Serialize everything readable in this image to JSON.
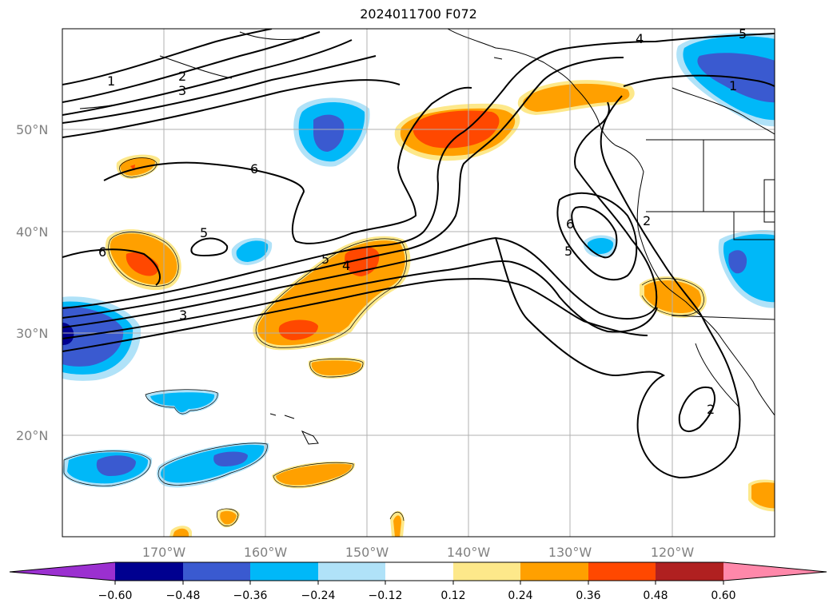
{
  "title": "2024011700 F072",
  "lat_labels": [
    {
      "text": "50°N",
      "lat": 50
    },
    {
      "text": "40°N",
      "lat": 40
    },
    {
      "text": "30°N",
      "lat": 30
    },
    {
      "text": "20°N",
      "lat": 20
    }
  ],
  "lon_labels": [
    {
      "text": "170°W",
      "lon": -170
    },
    {
      "text": "160°W",
      "lon": -160
    },
    {
      "text": "150°W",
      "lon": -150
    },
    {
      "text": "140°W",
      "lon": -140
    },
    {
      "text": "130°W",
      "lon": -130
    },
    {
      "text": "120°W",
      "lon": -120
    }
  ],
  "contour_labels": [
    "1",
    "2",
    "3",
    "6",
    "5",
    "6",
    "5",
    "4",
    "3",
    "6",
    "5",
    "2",
    "2",
    "4",
    "5",
    "1"
  ],
  "colorbar": {
    "ticks": [
      "−0.60",
      "−0.48",
      "−0.36",
      "−0.24",
      "−0.12",
      "0.12",
      "0.24",
      "0.36",
      "0.48",
      "0.60"
    ],
    "colors": {
      "lt_neg_0_60": "#9b30d0",
      "neg_0_60": "#000090",
      "neg_0_48": "#3a5ad0",
      "neg_0_36": "#00b8f8",
      "neg_0_24": "#b0e2f8",
      "neg_0_12": "#ffffff",
      "pos_0_12": "#fde88a",
      "pos_0_24": "#ffa000",
      "pos_0_36": "#ff4800",
      "pos_0_48": "#b02020",
      "gt_0_60": "#ff88aa"
    }
  }
}
